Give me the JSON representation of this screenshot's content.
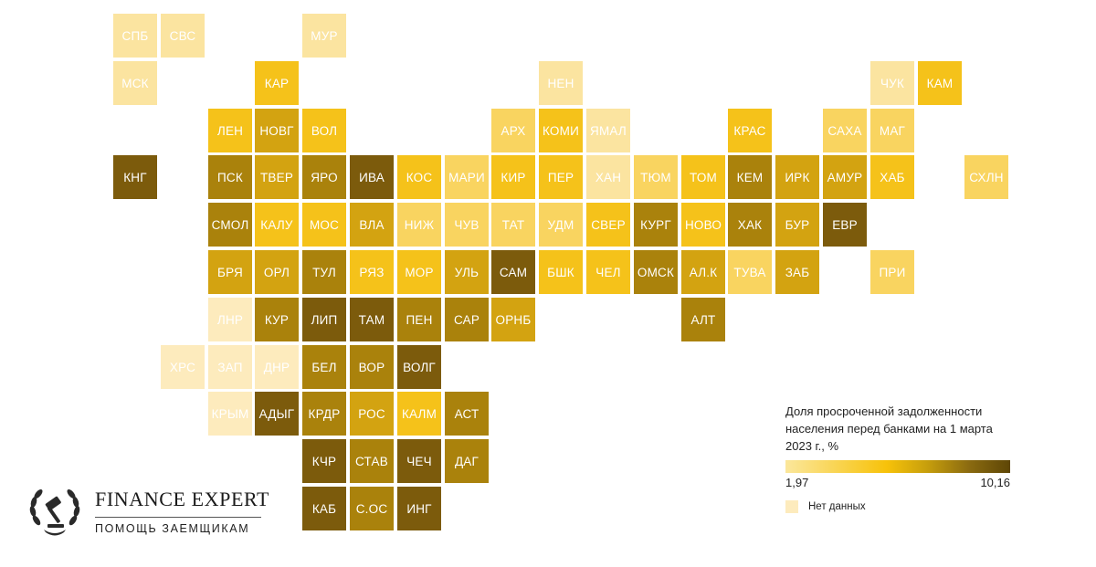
{
  "legend": {
    "title": "Доля просроченной задолженности населения перед банками на 1 марта 2023 г., %",
    "min_label": "1,97",
    "max_label": "10,16",
    "no_data_label": "Нет данных"
  },
  "logo": {
    "name": "FINANCE EXPERT",
    "tagline": "ПОМОЩЬ ЗАЕМЩИКАМ"
  },
  "colors": {
    "c1": "#fbe4a0",
    "c2": "#f9d460",
    "c3": "#f5c21a",
    "c4": "#d3a311",
    "c5": "#aa820c",
    "c6": "#7c5b0c",
    "nodata": "#fdebbd"
  },
  "regions": [
    {
      "label": "СПБ",
      "col": 0,
      "row": 0,
      "shade": "c1"
    },
    {
      "label": "СВС",
      "col": 1,
      "row": 0,
      "shade": "c1"
    },
    {
      "label": "МУР",
      "col": 4,
      "row": 0,
      "shade": "c1"
    },
    {
      "label": "МСК",
      "col": 0,
      "row": 1,
      "shade": "c1"
    },
    {
      "label": "КАР",
      "col": 3,
      "row": 1,
      "shade": "c3"
    },
    {
      "label": "НЕН",
      "col": 9,
      "row": 1,
      "shade": "c1"
    },
    {
      "label": "ЧУК",
      "col": 16,
      "row": 1,
      "shade": "c1"
    },
    {
      "label": "КАМ",
      "col": 17,
      "row": 1,
      "shade": "c3"
    },
    {
      "label": "ЛЕН",
      "col": 2,
      "row": 2,
      "shade": "c3"
    },
    {
      "label": "НОВГ",
      "col": 3,
      "row": 2,
      "shade": "c4"
    },
    {
      "label": "ВОЛ",
      "col": 4,
      "row": 2,
      "shade": "c3"
    },
    {
      "label": "АРХ",
      "col": 8,
      "row": 2,
      "shade": "c2"
    },
    {
      "label": "КОМИ",
      "col": 9,
      "row": 2,
      "shade": "c3"
    },
    {
      "label": "ЯМАЛ",
      "col": 10,
      "row": 2,
      "shade": "c1"
    },
    {
      "label": "КРАС",
      "col": 13,
      "row": 2,
      "shade": "c3"
    },
    {
      "label": "САХА",
      "col": 15,
      "row": 2,
      "shade": "c2"
    },
    {
      "label": "МАГ",
      "col": 16,
      "row": 2,
      "shade": "c2"
    },
    {
      "label": "КНГ",
      "col": 0,
      "row": 3,
      "shade": "c6"
    },
    {
      "label": "ПСК",
      "col": 2,
      "row": 3,
      "shade": "c5"
    },
    {
      "label": "ТВЕР",
      "col": 3,
      "row": 3,
      "shade": "c4"
    },
    {
      "label": "ЯРО",
      "col": 4,
      "row": 3,
      "shade": "c5"
    },
    {
      "label": "ИВА",
      "col": 5,
      "row": 3,
      "shade": "c6"
    },
    {
      "label": "КОС",
      "col": 6,
      "row": 3,
      "shade": "c3"
    },
    {
      "label": "МАРИ",
      "col": 7,
      "row": 3,
      "shade": "c2"
    },
    {
      "label": "КИР",
      "col": 8,
      "row": 3,
      "shade": "c3"
    },
    {
      "label": "ПЕР",
      "col": 9,
      "row": 3,
      "shade": "c3"
    },
    {
      "label": "ХАН",
      "col": 10,
      "row": 3,
      "shade": "c1"
    },
    {
      "label": "ТЮМ",
      "col": 11,
      "row": 3,
      "shade": "c2"
    },
    {
      "label": "ТОМ",
      "col": 12,
      "row": 3,
      "shade": "c3"
    },
    {
      "label": "КЕМ",
      "col": 13,
      "row": 3,
      "shade": "c5"
    },
    {
      "label": "ИРК",
      "col": 14,
      "row": 3,
      "shade": "c4"
    },
    {
      "label": "АМУР",
      "col": 15,
      "row": 3,
      "shade": "c4"
    },
    {
      "label": "ХАБ",
      "col": 16,
      "row": 3,
      "shade": "c3"
    },
    {
      "label": "СХЛН",
      "col": 18,
      "row": 3,
      "shade": "c2"
    },
    {
      "label": "СМОЛ",
      "col": 2,
      "row": 4,
      "shade": "c5"
    },
    {
      "label": "КАЛУ",
      "col": 3,
      "row": 4,
      "shade": "c3"
    },
    {
      "label": "МОС",
      "col": 4,
      "row": 4,
      "shade": "c3"
    },
    {
      "label": "ВЛА",
      "col": 5,
      "row": 4,
      "shade": "c4"
    },
    {
      "label": "НИЖ",
      "col": 6,
      "row": 4,
      "shade": "c2"
    },
    {
      "label": "ЧУВ",
      "col": 7,
      "row": 4,
      "shade": "c2"
    },
    {
      "label": "ТАТ",
      "col": 8,
      "row": 4,
      "shade": "c2"
    },
    {
      "label": "УДМ",
      "col": 9,
      "row": 4,
      "shade": "c2"
    },
    {
      "label": "СВЕР",
      "col": 10,
      "row": 4,
      "shade": "c3"
    },
    {
      "label": "КУРГ",
      "col": 11,
      "row": 4,
      "shade": "c5"
    },
    {
      "label": "НОВО",
      "col": 12,
      "row": 4,
      "shade": "c3"
    },
    {
      "label": "ХАК",
      "col": 13,
      "row": 4,
      "shade": "c5"
    },
    {
      "label": "БУР",
      "col": 14,
      "row": 4,
      "shade": "c4"
    },
    {
      "label": "ЕВР",
      "col": 15,
      "row": 4,
      "shade": "c6"
    },
    {
      "label": "БРЯ",
      "col": 2,
      "row": 5,
      "shade": "c4"
    },
    {
      "label": "ОРЛ",
      "col": 3,
      "row": 5,
      "shade": "c4"
    },
    {
      "label": "ТУЛ",
      "col": 4,
      "row": 5,
      "shade": "c5"
    },
    {
      "label": "РЯЗ",
      "col": 5,
      "row": 5,
      "shade": "c3"
    },
    {
      "label": "МОР",
      "col": 6,
      "row": 5,
      "shade": "c3"
    },
    {
      "label": "УЛЬ",
      "col": 7,
      "row": 5,
      "shade": "c4"
    },
    {
      "label": "САМ",
      "col": 8,
      "row": 5,
      "shade": "c6"
    },
    {
      "label": "БШК",
      "col": 9,
      "row": 5,
      "shade": "c3"
    },
    {
      "label": "ЧЕЛ",
      "col": 10,
      "row": 5,
      "shade": "c3"
    },
    {
      "label": "ОМСК",
      "col": 11,
      "row": 5,
      "shade": "c5"
    },
    {
      "label": "АЛ.К",
      "col": 12,
      "row": 5,
      "shade": "c4"
    },
    {
      "label": "ТУВА",
      "col": 13,
      "row": 5,
      "shade": "c2"
    },
    {
      "label": "ЗАБ",
      "col": 14,
      "row": 5,
      "shade": "c4"
    },
    {
      "label": "ПРИ",
      "col": 16,
      "row": 5,
      "shade": "c2"
    },
    {
      "label": "ЛНР",
      "col": 2,
      "row": 6,
      "shade": "nodata"
    },
    {
      "label": "КУР",
      "col": 3,
      "row": 6,
      "shade": "c5"
    },
    {
      "label": "ЛИП",
      "col": 4,
      "row": 6,
      "shade": "c6"
    },
    {
      "label": "ТАМ",
      "col": 5,
      "row": 6,
      "shade": "c6"
    },
    {
      "label": "ПЕН",
      "col": 6,
      "row": 6,
      "shade": "c5"
    },
    {
      "label": "САР",
      "col": 7,
      "row": 6,
      "shade": "c5"
    },
    {
      "label": "ОРНБ",
      "col": 8,
      "row": 6,
      "shade": "c4"
    },
    {
      "label": "АЛТ",
      "col": 12,
      "row": 6,
      "shade": "c5"
    },
    {
      "label": "ХРС",
      "col": 1,
      "row": 7,
      "shade": "nodata"
    },
    {
      "label": "ЗАП",
      "col": 2,
      "row": 7,
      "shade": "nodata"
    },
    {
      "label": "ДНР",
      "col": 3,
      "row": 7,
      "shade": "nodata"
    },
    {
      "label": "БЕЛ",
      "col": 4,
      "row": 7,
      "shade": "c5"
    },
    {
      "label": "ВОР",
      "col": 5,
      "row": 7,
      "shade": "c5"
    },
    {
      "label": "ВОЛГ",
      "col": 6,
      "row": 7,
      "shade": "c6"
    },
    {
      "label": "КРЫМ",
      "col": 2,
      "row": 8,
      "shade": "nodata"
    },
    {
      "label": "АДЫГ",
      "col": 3,
      "row": 8,
      "shade": "c6"
    },
    {
      "label": "КРДР",
      "col": 4,
      "row": 8,
      "shade": "c5"
    },
    {
      "label": "РОС",
      "col": 5,
      "row": 8,
      "shade": "c4"
    },
    {
      "label": "КАЛМ",
      "col": 6,
      "row": 8,
      "shade": "c3"
    },
    {
      "label": "АСТ",
      "col": 7,
      "row": 8,
      "shade": "c5"
    },
    {
      "label": "КЧР",
      "col": 4,
      "row": 9,
      "shade": "c6"
    },
    {
      "label": "СТАВ",
      "col": 5,
      "row": 9,
      "shade": "c5"
    },
    {
      "label": "ЧЕЧ",
      "col": 6,
      "row": 9,
      "shade": "c6"
    },
    {
      "label": "ДАГ",
      "col": 7,
      "row": 9,
      "shade": "c5"
    },
    {
      "label": "КАБ",
      "col": 4,
      "row": 10,
      "shade": "c6"
    },
    {
      "label": "С.ОС",
      "col": 5,
      "row": 10,
      "shade": "c5"
    },
    {
      "label": "ИНГ",
      "col": 6,
      "row": 10,
      "shade": "c6"
    }
  ]
}
